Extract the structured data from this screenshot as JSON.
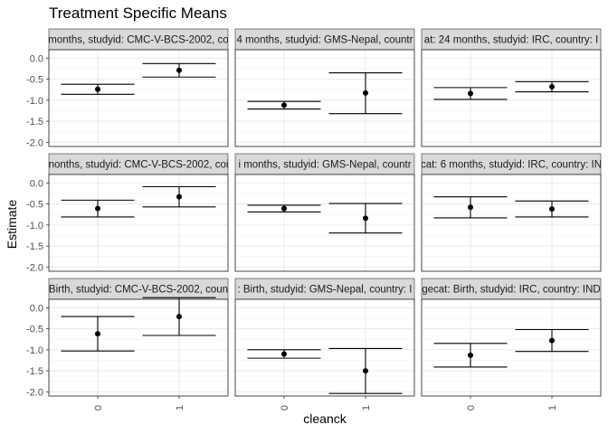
{
  "chart_data": {
    "type": "errorbar",
    "title": "Treatment Specific Means",
    "xlabel": "cleanck",
    "ylabel": "Estimate",
    "categories": [
      "0",
      "1"
    ],
    "yticks": [
      "0.0",
      "-0.5",
      "-1.0",
      "-1.5",
      "-2.0"
    ],
    "ytick_values": [
      0.0,
      -0.5,
      -1.0,
      -1.5,
      -2.0
    ],
    "ylim": [
      -2.1,
      0.2
    ],
    "grid": true,
    "panels": [
      {
        "label": "months, studyid: CMC-V-BCS-2002, co",
        "points": [
          {
            "x": "0",
            "y": -0.74,
            "lower": -0.86,
            "upper": -0.62
          },
          {
            "x": "1",
            "y": -0.29,
            "lower": -0.45,
            "upper": -0.13
          }
        ]
      },
      {
        "label": "4 months, studyid: GMS-Nepal, countr",
        "points": [
          {
            "x": "0",
            "y": -1.12,
            "lower": -1.21,
            "upper": -1.03
          },
          {
            "x": "1",
            "y": -0.83,
            "lower": -1.32,
            "upper": -0.35
          }
        ]
      },
      {
        "label": "at: 24 months, studyid: IRC, country: I",
        "points": [
          {
            "x": "0",
            "y": -0.84,
            "lower": -0.98,
            "upper": -0.7
          },
          {
            "x": "1",
            "y": -0.68,
            "lower": -0.8,
            "upper": -0.56
          }
        ]
      },
      {
        "label": "nonths, studyid: CMC-V-BCS-2002, coi",
        "points": [
          {
            "x": "0",
            "y": -0.61,
            "lower": -0.81,
            "upper": -0.41
          },
          {
            "x": "1",
            "y": -0.33,
            "lower": -0.57,
            "upper": -0.09
          }
        ]
      },
      {
        "label": "i months, studyid: GMS-Nepal, countr",
        "points": [
          {
            "x": "0",
            "y": -0.61,
            "lower": -0.69,
            "upper": -0.53
          },
          {
            "x": "1",
            "y": -0.84,
            "lower": -1.19,
            "upper": -0.49
          }
        ]
      },
      {
        "label": "cat: 6 months, studyid: IRC, country: IN",
        "points": [
          {
            "x": "0",
            "y": -0.58,
            "lower": -0.83,
            "upper": -0.33
          },
          {
            "x": "1",
            "y": -0.62,
            "lower": -0.81,
            "upper": -0.43
          }
        ]
      },
      {
        "label": "Birth, studyid: CMC-V-BCS-2002, coun",
        "points": [
          {
            "x": "0",
            "y": -0.62,
            "lower": -1.03,
            "upper": -0.21
          },
          {
            "x": "1",
            "y": -0.21,
            "lower": -0.66,
            "upper": 0.24
          }
        ]
      },
      {
        "label": ": Birth, studyid: GMS-Nepal, country: I",
        "points": [
          {
            "x": "0",
            "y": -1.1,
            "lower": -1.2,
            "upper": -1.0
          },
          {
            "x": "1",
            "y": -1.5,
            "lower": -2.04,
            "upper": -0.97
          }
        ]
      },
      {
        "label": "gecat: Birth, studyid: IRC, country: IND",
        "points": [
          {
            "x": "0",
            "y": -1.13,
            "lower": -1.41,
            "upper": -0.85
          },
          {
            "x": "1",
            "y": -0.78,
            "lower": -1.04,
            "upper": -0.52
          }
        ]
      }
    ]
  }
}
